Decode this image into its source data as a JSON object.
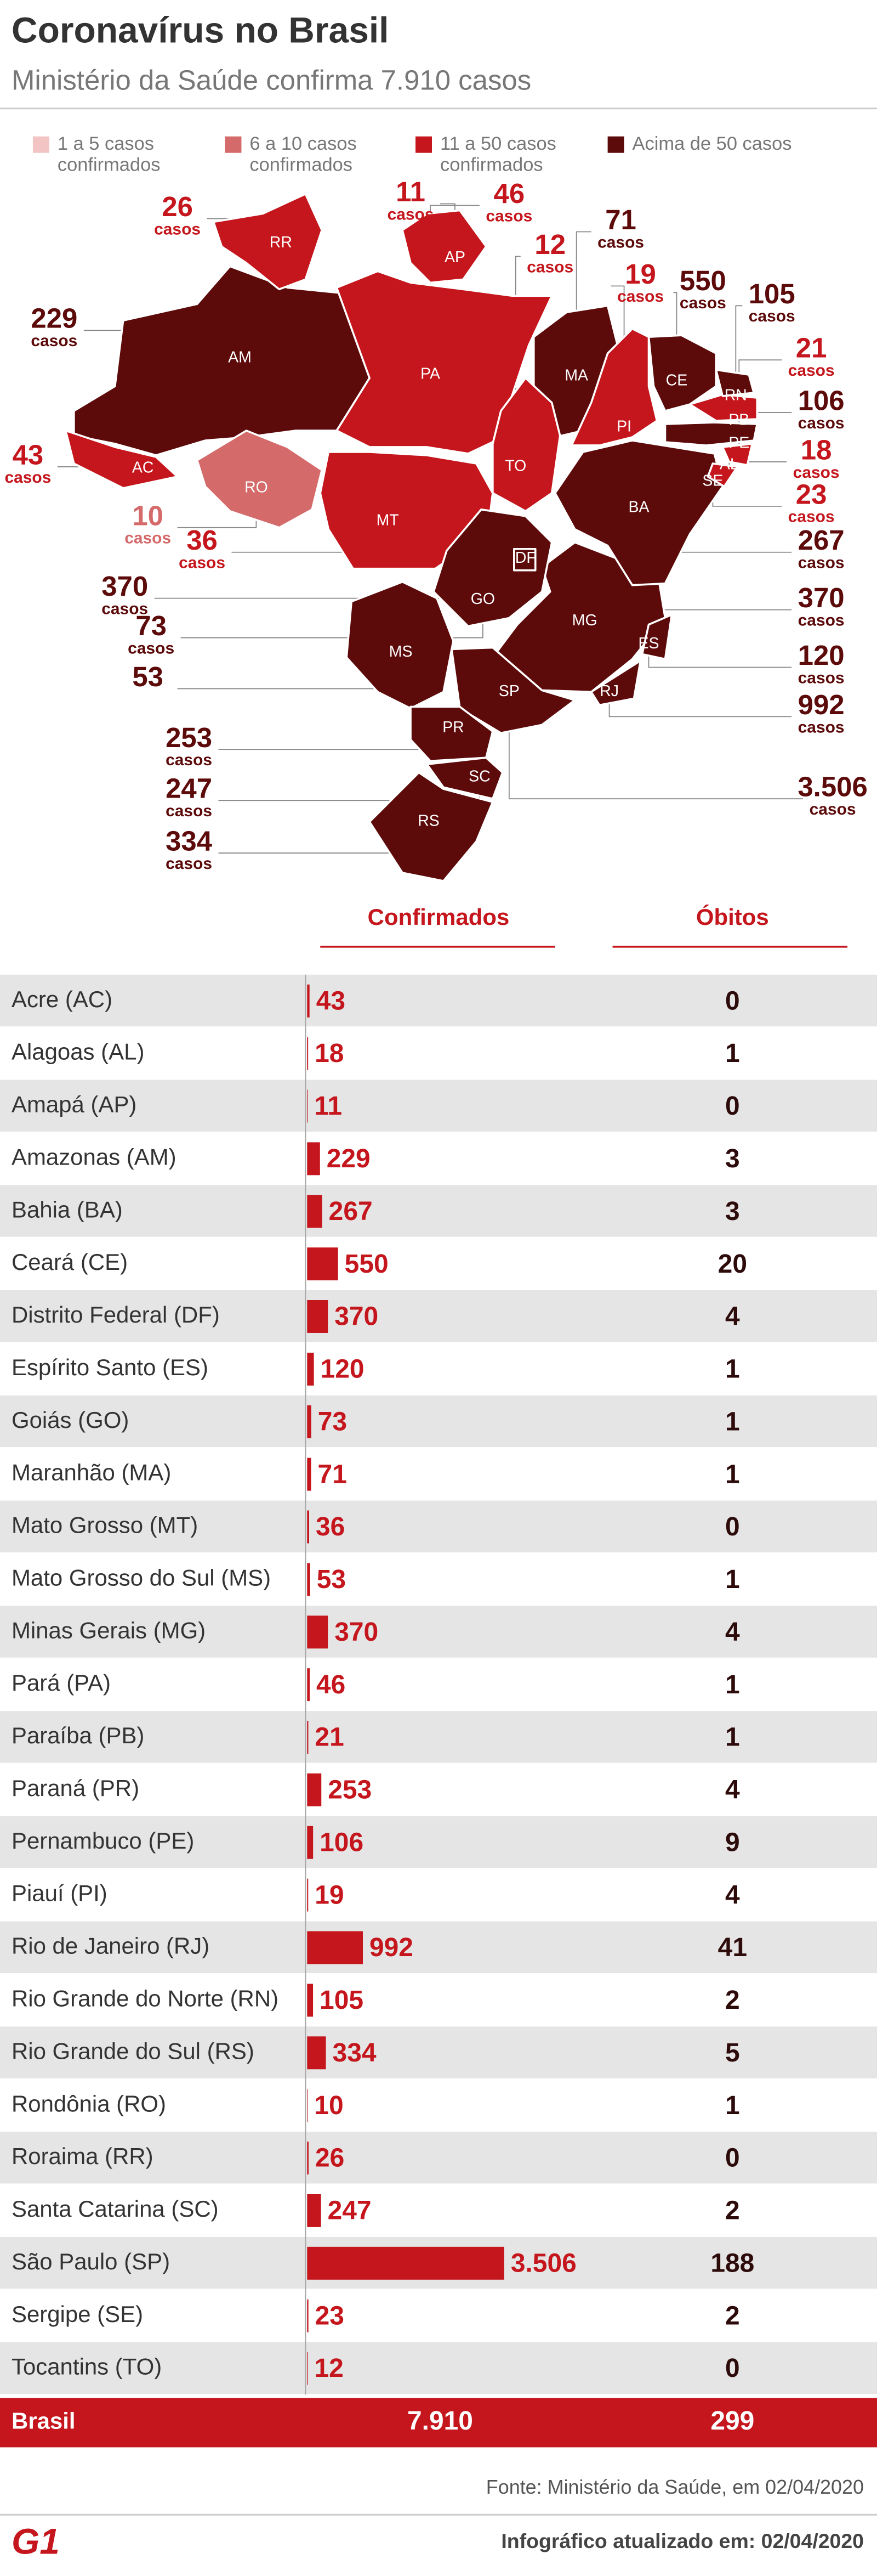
{
  "header": {
    "title": "Coronavírus no Brasil",
    "subtitle": "Ministério da Saúde confirma 7.910 casos"
  },
  "legend": [
    {
      "lines": [
        "1 a 5 casos",
        "confirmados"
      ],
      "color": "#f2c4c4"
    },
    {
      "lines": [
        "6 a 10 casos",
        "confirmados"
      ],
      "color": "#d46a6a"
    },
    {
      "lines": [
        "11 a 50 casos",
        "confirmados"
      ],
      "color": "#c4161c"
    },
    {
      "lines": [
        "Acima de 50 casos"
      ],
      "color": "#5c0a0a"
    }
  ],
  "chart_data": {
    "type": "bar",
    "categories": [
      "Acre (AC)",
      "Alagoas (AL)",
      "Amapá (AP)",
      "Amazonas (AM)",
      "Bahia (BA)",
      "Ceará (CE)",
      "Distrito Federal (DF)",
      "Espírito Santo (ES)",
      "Goiás (GO)",
      "Maranhão (MA)",
      "Mato Grosso (MT)",
      "Mato Grosso do Sul (MS)",
      "Minas Gerais (MG)",
      "Pará (PA)",
      "Paraíba (PB)",
      "Paraná (PR)",
      "Pernambuco (PE)",
      "Piauí (PI)",
      "Rio de Janeiro (RJ)",
      "Rio Grande do Norte (RN)",
      "Rio Grande do Sul (RS)",
      "Rondônia (RO)",
      "Roraima (RR)",
      "Santa Catarina (SC)",
      "São Paulo (SP)",
      "Sergipe (SE)",
      "Tocantins (TO)"
    ],
    "map_labels": [
      "AC",
      "AL",
      "AP",
      "AM",
      "BA",
      "CE",
      "DF",
      "ES",
      "GO",
      "MA",
      "MT",
      "MS",
      "MG",
      "PA",
      "PB",
      "PR",
      "PE",
      "PI",
      "RJ",
      "RN",
      "RS",
      "RO",
      "RR",
      "SC",
      "SP",
      "SE",
      "TO"
    ],
    "map_colors": [
      "#c4161c",
      "#c4161c",
      "#c4161c",
      "#5c0a0a",
      "#5c0a0a",
      "#5c0a0a",
      "#5c0a0a",
      "#5c0a0a",
      "#5c0a0a",
      "#5c0a0a",
      "#c4161c",
      "#5c0a0a",
      "#5c0a0a",
      "#c4161c",
      "#c4161c",
      "#5c0a0a",
      "#5c0a0a",
      "#c4161c",
      "#5c0a0a",
      "#5c0a0a",
      "#5c0a0a",
      "#d46a6a",
      "#c4161c",
      "#5c0a0a",
      "#5c0a0a",
      "#c4161c",
      "#c4161c"
    ],
    "map_unit": "casos",
    "series": [
      {
        "name": "Confirmados",
        "color": "#c4161c",
        "values": [
          43,
          18,
          11,
          229,
          267,
          550,
          370,
          120,
          73,
          71,
          36,
          53,
          370,
          46,
          21,
          253,
          106,
          19,
          992,
          105,
          334,
          10,
          26,
          247,
          3506,
          23,
          12
        ],
        "value_labels": [
          "43",
          "18",
          "11",
          "229",
          "267",
          "550",
          "370",
          "120",
          "73",
          "71",
          "36",
          "53",
          "370",
          "46",
          "21",
          "253",
          "106",
          "19",
          "992",
          "105",
          "334",
          "10",
          "26",
          "247",
          "3.506",
          "23",
          "12"
        ]
      },
      {
        "name": "Óbitos",
        "color": "#2e0b0b",
        "values": [
          0,
          1,
          0,
          3,
          3,
          20,
          4,
          1,
          1,
          1,
          0,
          1,
          4,
          1,
          1,
          4,
          9,
          4,
          41,
          2,
          5,
          1,
          0,
          2,
          188,
          2,
          0
        ]
      }
    ],
    "total": {
      "label": "Brasil",
      "confirmed": "7.910",
      "deaths": "299"
    }
  },
  "footer": {
    "source": "Fonte: Ministério da Saúde, em 02/04/2020",
    "logo": "G1",
    "updated": "Infográfico atualizado em: 02/04/2020"
  }
}
